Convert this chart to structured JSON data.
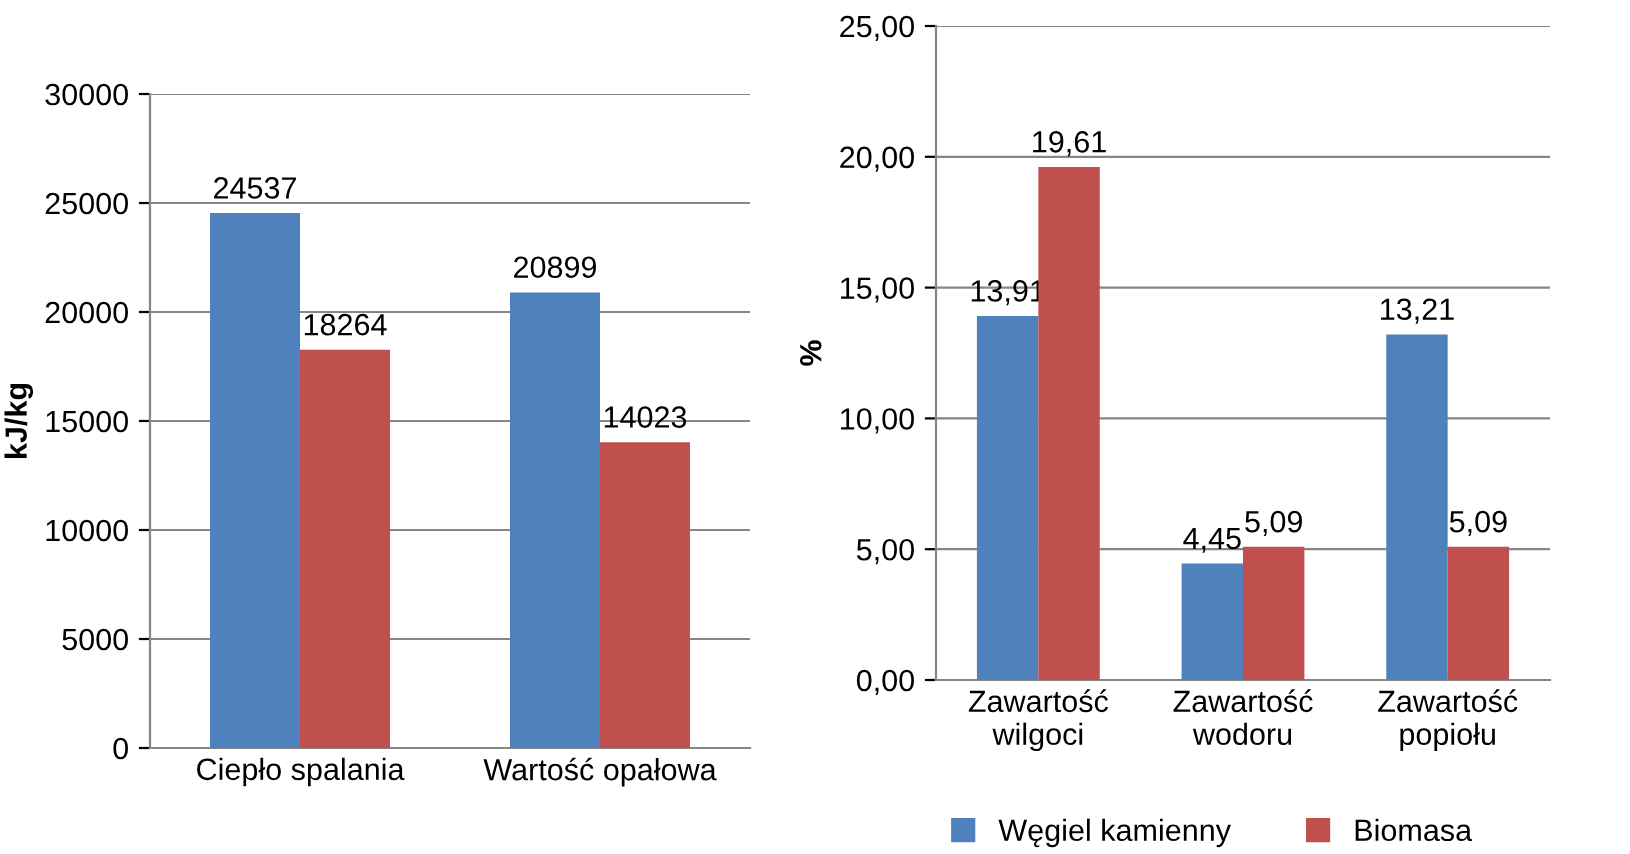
{
  "chart_data": [
    {
      "type": "bar",
      "ylabel": "kJ/kg",
      "categories": [
        "Ciepło spalania",
        "Wartość opałowa"
      ],
      "series": [
        {
          "color": "#4f81bd",
          "values": [
            24537,
            20899
          ]
        },
        {
          "color": "#c0504d",
          "values": [
            18264,
            14023
          ]
        }
      ],
      "ylim": [
        0,
        30000
      ],
      "yticks": [
        0,
        5000,
        10000,
        15000,
        20000,
        25000,
        30000
      ],
      "grid": "y",
      "data_labels": true,
      "legend": false
    },
    {
      "type": "bar",
      "ylabel": "%",
      "categories": [
        "Zawartość\nwilgoci",
        "Zawartość\nwodoru",
        "Zawartość\npopiołu"
      ],
      "series": [
        {
          "name": "Węgiel kamienny",
          "color": "#4f81bd",
          "values": [
            13.91,
            4.45,
            13.21
          ],
          "value_labels": [
            "13,91",
            "4,45",
            "13,21"
          ]
        },
        {
          "name": "Biomasa",
          "color": "#c0504d",
          "values": [
            19.61,
            5.09,
            5.09
          ],
          "value_labels": [
            "19,61",
            "5,09",
            "5,09"
          ]
        }
      ],
      "ylim": [
        0,
        25
      ],
      "yticks": [
        {
          "value": 0,
          "label": "0,00"
        },
        {
          "value": 5,
          "label": "5,00"
        },
        {
          "value": 10,
          "label": "10,00"
        },
        {
          "value": 15,
          "label": "15,00"
        },
        {
          "value": 20,
          "label": "20,00"
        },
        {
          "value": 25,
          "label": "25,00"
        }
      ],
      "grid": "y",
      "legend": "bottom"
    }
  ]
}
